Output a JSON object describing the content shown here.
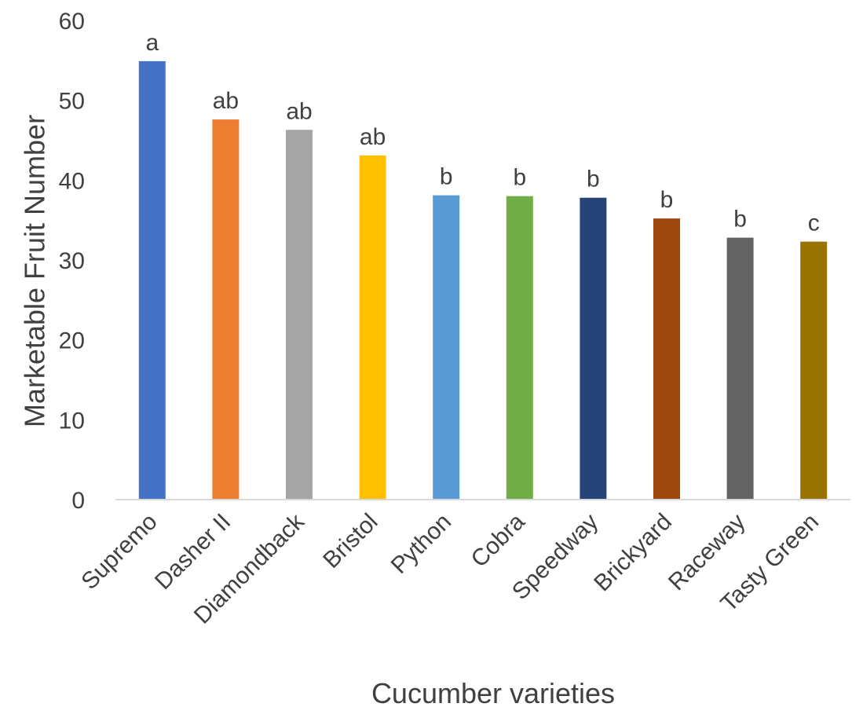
{
  "chart_data": {
    "type": "bar",
    "title": "",
    "xlabel": "Cucumber varieties",
    "ylabel": "Marketable Fruit Number",
    "ylim": [
      0,
      60
    ],
    "yticks": [
      0,
      10,
      20,
      30,
      40,
      50,
      60
    ],
    "grid": false,
    "legend": "none",
    "categories": [
      "Supremo",
      "Dasher II",
      "Diamondback",
      "Bristol",
      "Python",
      "Cobra",
      "Speedway",
      "Brickyard",
      "Raceway",
      "Tasty Green"
    ],
    "values": [
      54.9,
      47.6,
      46.3,
      43.1,
      38.1,
      38.0,
      37.8,
      35.2,
      32.8,
      32.3
    ],
    "data_labels": [
      "a",
      "ab",
      "ab",
      "ab",
      "b",
      "b",
      "b",
      "b",
      "b",
      "c"
    ],
    "colors": [
      "#4472C4",
      "#ED7D31",
      "#A5A5A5",
      "#FFC000",
      "#5B9BD5",
      "#70AD47",
      "#264478",
      "#9E480E",
      "#636363",
      "#997300"
    ]
  }
}
